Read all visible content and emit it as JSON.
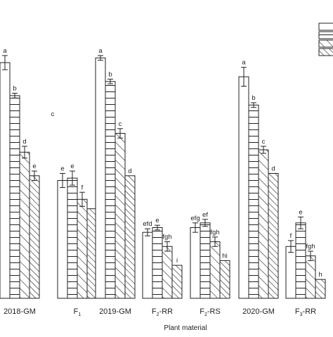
{
  "chart_data": {
    "type": "bar",
    "title": "",
    "xlabel": "Plant material",
    "ylabel": "",
    "ylim": [
      0,
      100
    ],
    "categories": [
      "2018-GM",
      "F1",
      "2019-GM",
      "F2-RR",
      "F2-RS",
      "2020-GM",
      "F3-RR"
    ],
    "category_display": [
      {
        "main": "2018-GM",
        "sub": ""
      },
      {
        "main": "F",
        "sub": "1"
      },
      {
        "main": "2019-GM",
        "sub": ""
      },
      {
        "main": "F",
        "sub": "2",
        "suffix": "-RR"
      },
      {
        "main": "F",
        "sub": "2",
        "suffix": "-RS"
      },
      {
        "main": "2020-GM",
        "sub": ""
      },
      {
        "main": "F",
        "sub": "3",
        "suffix": "-RR"
      }
    ],
    "series_patterns": [
      "white",
      "horizontal-lines",
      "diagonal-hatch",
      "diagonal-dense"
    ],
    "series": [
      {
        "values": [
          100,
          50,
          102,
          28,
          30,
          94,
          22
        ],
        "errors": [
          3,
          3,
          1,
          1.5,
          2,
          4,
          2.5
        ],
        "sig": [
          "a",
          "e",
          "a",
          "efd",
          "efg",
          "a",
          "f"
        ]
      },
      {
        "values": [
          86,
          51,
          92,
          30,
          32,
          82,
          32
        ],
        "errors": [
          1,
          3,
          1,
          1,
          1.5,
          1,
          2.5
        ],
        "sig": [
          "b",
          "e",
          "b",
          "e",
          "ef",
          "b",
          "e"
        ]
      },
      {
        "values": [
          62,
          42,
          70,
          22,
          24,
          63,
          18
        ],
        "errors": [
          2.5,
          3,
          2,
          2,
          2,
          1.5,
          2
        ],
        "sig": [
          "d",
          "f",
          "c",
          "fgh",
          "fgh",
          "c",
          "fgh"
        ]
      },
      {
        "values": [
          52,
          38,
          52,
          14,
          16,
          53,
          8
        ],
        "errors": [
          2,
          0,
          0,
          0,
          0,
          0,
          0
        ],
        "sig": [
          "e",
          "",
          "d",
          "i",
          "hi",
          "d",
          "h"
        ]
      }
    ],
    "annotations": [
      {
        "text": "c"
      }
    ],
    "legend": {
      "position": "top-right",
      "entries": [
        "",
        "",
        "",
        ""
      ]
    },
    "grid": false
  }
}
